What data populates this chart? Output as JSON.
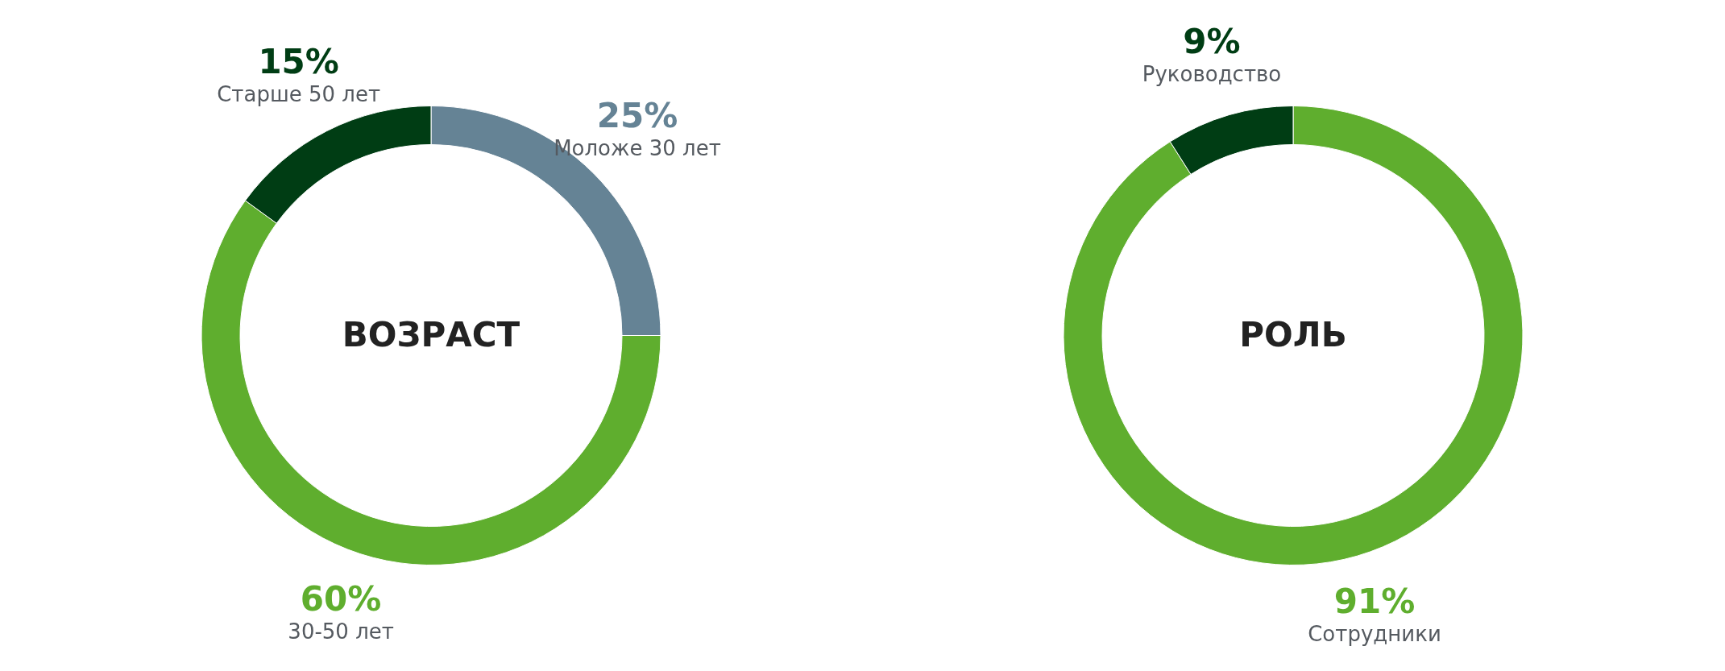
{
  "chart_data": [
    {
      "type": "donut",
      "title": "ВОЗРАСТ",
      "categories": [
        "Моложе 30 лет",
        "30-50 лет",
        "Старше 50 лет"
      ],
      "values": [
        25,
        60,
        15
      ],
      "colors": [
        "#658395",
        "#5fae2e",
        "#003d14"
      ],
      "value_labels": [
        "25%",
        "60%",
        "15%"
      ]
    },
    {
      "type": "donut",
      "title": "РОЛЬ",
      "categories": [
        "Сотрудники",
        "Руководство"
      ],
      "values": [
        91,
        9
      ],
      "colors": [
        "#5fae2e",
        "#003d14"
      ],
      "value_labels": [
        "91%",
        "9%"
      ]
    }
  ]
}
